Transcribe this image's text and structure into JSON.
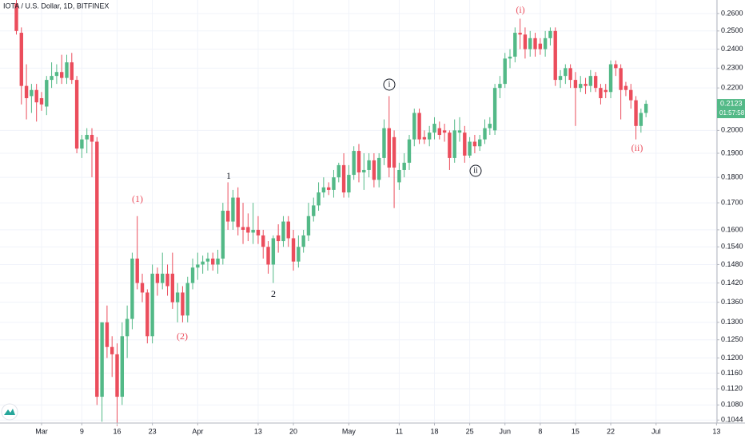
{
  "chart_data": {
    "type": "candlestick",
    "title": "IOTA / U.S. Dollar, 1D, BITFINEX",
    "up_color": "#53b987",
    "down_color": "#eb4d5c",
    "grid": true,
    "log_scale": true,
    "x": [
      -5,
      -4,
      -3,
      -2,
      -1,
      0,
      1,
      2,
      3,
      4,
      5,
      6,
      7,
      8,
      9,
      10,
      11,
      12,
      13,
      14,
      15,
      16,
      17,
      18,
      19,
      20,
      21,
      22,
      23,
      24,
      25,
      26,
      27,
      28,
      29,
      30,
      31,
      32,
      33,
      34,
      35,
      36,
      37,
      38,
      39,
      40,
      41,
      42,
      43,
      44,
      45,
      46,
      47,
      48,
      49,
      50,
      51,
      52,
      53,
      54,
      55,
      56,
      57,
      58,
      59,
      60,
      61,
      62,
      63,
      64,
      65,
      66,
      67,
      68,
      69,
      70,
      71,
      72,
      73,
      74,
      75,
      76,
      77,
      78,
      79,
      80,
      81,
      82,
      83,
      84,
      85,
      86,
      87,
      88,
      89,
      90,
      91,
      92,
      93,
      94,
      95,
      96,
      97,
      98,
      99,
      100,
      101,
      102,
      103,
      104,
      105,
      106,
      107,
      108,
      109,
      110,
      111,
      112,
      113,
      114,
      115,
      116,
      117,
      118,
      119,
      120
    ],
    "open": [
      0.266,
      0.249,
      0.221,
      0.216,
      0.219,
      0.215,
      0.211,
      0.224,
      0.226,
      0.228,
      0.225,
      0.233,
      0.224,
      0.192,
      0.196,
      0.198,
      0.195,
      0.11,
      0.13,
      0.123,
      0.121,
      0.11,
      0.126,
      0.131,
      0.15,
      0.142,
      0.139,
      0.126,
      0.145,
      0.142,
      0.145,
      0.145,
      0.136,
      0.139,
      0.132,
      0.142,
      0.147,
      0.148,
      0.149,
      0.15,
      0.148,
      0.15,
      0.167,
      0.163,
      0.172,
      0.161,
      0.161,
      0.159,
      0.16,
      0.158,
      0.154,
      0.148,
      0.158,
      0.156,
      0.163,
      0.157,
      0.149,
      0.154,
      0.158,
      0.165,
      0.169,
      0.174,
      0.176,
      0.175,
      0.18,
      0.185,
      0.174,
      0.181,
      0.191,
      0.182,
      0.183,
      0.187,
      0.179,
      0.188,
      0.201,
      0.197,
      0.178,
      0.183,
      0.186,
      0.196,
      0.208,
      0.197,
      0.196,
      0.199,
      0.201,
      0.2,
      0.199,
      0.188,
      0.199,
      0.199,
      0.189,
      0.195,
      0.193,
      0.196,
      0.201,
      0.2,
      0.22,
      0.222,
      0.235,
      0.236,
      0.249,
      0.248,
      0.24,
      0.246,
      0.243,
      0.24,
      0.246,
      0.25,
      0.224,
      0.226,
      0.23,
      0.224,
      0.22,
      0.222,
      0.221,
      0.226,
      0.22,
      0.219,
      0.218,
      0.232,
      0.23,
      0.221,
      0.219,
      0.214,
      0.202,
      0.208
    ],
    "high": [
      0.268,
      0.252,
      0.232,
      0.222,
      0.222,
      0.218,
      0.226,
      0.233,
      0.232,
      0.237,
      0.237,
      0.238,
      0.226,
      0.198,
      0.201,
      0.201,
      0.197,
      0.13,
      0.135,
      0.126,
      0.124,
      0.13,
      0.135,
      0.152,
      0.165,
      0.145,
      0.14,
      0.148,
      0.147,
      0.152,
      0.148,
      0.152,
      0.142,
      0.141,
      0.144,
      0.15,
      0.152,
      0.151,
      0.152,
      0.152,
      0.153,
      0.17,
      0.178,
      0.175,
      0.176,
      0.17,
      0.166,
      0.17,
      0.165,
      0.16,
      0.156,
      0.158,
      0.162,
      0.165,
      0.165,
      0.16,
      0.158,
      0.16,
      0.17,
      0.172,
      0.178,
      0.18,
      0.178,
      0.183,
      0.186,
      0.19,
      0.185,
      0.193,
      0.194,
      0.19,
      0.19,
      0.19,
      0.19,
      0.205,
      0.216,
      0.2,
      0.186,
      0.19,
      0.198,
      0.21,
      0.21,
      0.2,
      0.202,
      0.206,
      0.204,
      0.203,
      0.2,
      0.205,
      0.206,
      0.202,
      0.197,
      0.198,
      0.198,
      0.205,
      0.206,
      0.222,
      0.226,
      0.238,
      0.24,
      0.252,
      0.257,
      0.252,
      0.25,
      0.249,
      0.246,
      0.25,
      0.252,
      0.252,
      0.229,
      0.232,
      0.232,
      0.228,
      0.226,
      0.225,
      0.229,
      0.228,
      0.222,
      0.222,
      0.234,
      0.234,
      0.232,
      0.223,
      0.222,
      0.216,
      0.21,
      0.214
    ],
    "low": [
      0.248,
      0.212,
      0.205,
      0.208,
      0.204,
      0.209,
      0.207,
      0.22,
      0.222,
      0.222,
      0.222,
      0.222,
      0.19,
      0.188,
      0.19,
      0.18,
      0.108,
      0.104,
      0.12,
      0.115,
      0.103,
      0.108,
      0.12,
      0.128,
      0.14,
      0.136,
      0.124,
      0.124,
      0.138,
      0.14,
      0.138,
      0.134,
      0.13,
      0.13,
      0.13,
      0.14,
      0.143,
      0.145,
      0.146,
      0.146,
      0.145,
      0.148,
      0.16,
      0.16,
      0.158,
      0.155,
      0.156,
      0.155,
      0.155,
      0.15,
      0.145,
      0.142,
      0.152,
      0.154,
      0.154,
      0.146,
      0.147,
      0.152,
      0.156,
      0.163,
      0.167,
      0.172,
      0.173,
      0.172,
      0.178,
      0.172,
      0.172,
      0.179,
      0.178,
      0.175,
      0.18,
      0.176,
      0.176,
      0.185,
      0.18,
      0.168,
      0.175,
      0.18,
      0.183,
      0.193,
      0.194,
      0.194,
      0.193,
      0.196,
      0.196,
      0.195,
      0.183,
      0.186,
      0.195,
      0.186,
      0.188,
      0.19,
      0.191,
      0.194,
      0.198,
      0.198,
      0.215,
      0.22,
      0.23,
      0.233,
      0.24,
      0.235,
      0.236,
      0.236,
      0.237,
      0.236,
      0.242,
      0.221,
      0.22,
      0.222,
      0.22,
      0.202,
      0.218,
      0.217,
      0.218,
      0.218,
      0.212,
      0.215,
      0.215,
      0.226,
      0.205,
      0.216,
      0.21,
      0.196,
      0.199,
      0.206
    ],
    "close": [
      0.25,
      0.221,
      0.215,
      0.219,
      0.213,
      0.212,
      0.224,
      0.226,
      0.228,
      0.225,
      0.233,
      0.224,
      0.192,
      0.196,
      0.198,
      0.195,
      0.11,
      0.13,
      0.123,
      0.121,
      0.11,
      0.126,
      0.131,
      0.15,
      0.142,
      0.139,
      0.126,
      0.145,
      0.142,
      0.145,
      0.141,
      0.136,
      0.139,
      0.132,
      0.142,
      0.147,
      0.148,
      0.149,
      0.15,
      0.148,
      0.15,
      0.167,
      0.163,
      0.172,
      0.161,
      0.16,
      0.159,
      0.16,
      0.158,
      0.154,
      0.148,
      0.157,
      0.156,
      0.163,
      0.157,
      0.149,
      0.154,
      0.158,
      0.165,
      0.169,
      0.174,
      0.176,
      0.175,
      0.18,
      0.185,
      0.174,
      0.181,
      0.191,
      0.182,
      0.183,
      0.187,
      0.179,
      0.188,
      0.201,
      0.184,
      0.184,
      0.183,
      0.186,
      0.196,
      0.208,
      0.196,
      0.196,
      0.199,
      0.203,
      0.198,
      0.199,
      0.188,
      0.2,
      0.2,
      0.189,
      0.195,
      0.193,
      0.196,
      0.201,
      0.203,
      0.22,
      0.222,
      0.235,
      0.236,
      0.249,
      0.248,
      0.24,
      0.246,
      0.24,
      0.24,
      0.246,
      0.25,
      0.224,
      0.226,
      0.23,
      0.224,
      0.22,
      0.222,
      0.221,
      0.226,
      0.22,
      0.215,
      0.218,
      0.232,
      0.23,
      0.219,
      0.219,
      0.214,
      0.202,
      0.208,
      0.2123
    ],
    "xlim": [
      -8.25,
      134.1
    ],
    "xticks": [
      {
        "value": 0,
        "label": "Mar"
      },
      {
        "value": 8,
        "label": "9"
      },
      {
        "value": 15,
        "label": "16"
      },
      {
        "value": 22,
        "label": "23"
      },
      {
        "value": 31,
        "label": "Apr"
      },
      {
        "value": 43,
        "label": "13"
      },
      {
        "value": 50,
        "label": "20"
      },
      {
        "value": 61,
        "label": "May"
      },
      {
        "value": 71,
        "label": "11"
      },
      {
        "value": 78,
        "label": "18"
      },
      {
        "value": 85,
        "label": "25"
      },
      {
        "value": 92,
        "label": "Jun"
      },
      {
        "value": 99,
        "label": "8"
      },
      {
        "value": 106,
        "label": "15"
      },
      {
        "value": 113,
        "label": "22"
      },
      {
        "value": 122,
        "label": "Jul"
      },
      {
        "value": 134,
        "label": "13"
      }
    ],
    "ylim": [
      0.1037,
      0.268
    ],
    "yticks": [
      {
        "value": 0.26,
        "label": "0.2600"
      },
      {
        "value": 0.25,
        "label": "0.2500"
      },
      {
        "value": 0.24,
        "label": "0.2400"
      },
      {
        "value": 0.23,
        "label": "0.2300"
      },
      {
        "value": 0.22,
        "label": "0.2200"
      },
      {
        "value": 0.2,
        "label": "0.2000"
      },
      {
        "value": 0.19,
        "label": "0.1900"
      },
      {
        "value": 0.18,
        "label": "0.1800"
      },
      {
        "value": 0.17,
        "label": "0.1700"
      },
      {
        "value": 0.16,
        "label": "0.1600"
      },
      {
        "value": 0.154,
        "label": "0.1540"
      },
      {
        "value": 0.148,
        "label": "0.1480"
      },
      {
        "value": 0.142,
        "label": "0.1420"
      },
      {
        "value": 0.136,
        "label": "0.1360"
      },
      {
        "value": 0.13,
        "label": "0.1300"
      },
      {
        "value": 0.125,
        "label": "0.1250"
      },
      {
        "value": 0.12,
        "label": "0.1200"
      },
      {
        "value": 0.116,
        "label": "0.1160"
      },
      {
        "value": 0.112,
        "label": "0.1120"
      },
      {
        "value": 0.108,
        "label": "0.1080"
      },
      {
        "value": 0.1044,
        "label": "0.1044"
      }
    ],
    "last_price": 0.2123,
    "countdown": "01:57:58",
    "annotations": [
      {
        "text": "(i)",
        "color": "#eb4d5c"
      },
      {
        "text": "(ii)",
        "color": "#eb4d5c"
      },
      {
        "text": "(1)",
        "color": "#eb4d5c"
      },
      {
        "text": "(2)",
        "color": "#eb4d5c"
      },
      {
        "text": "1",
        "color": "#131722"
      },
      {
        "text": "2",
        "color": "#131722"
      },
      {
        "text": "i",
        "color": "#131722"
      },
      {
        "text": "ii",
        "color": "#131722"
      }
    ]
  }
}
